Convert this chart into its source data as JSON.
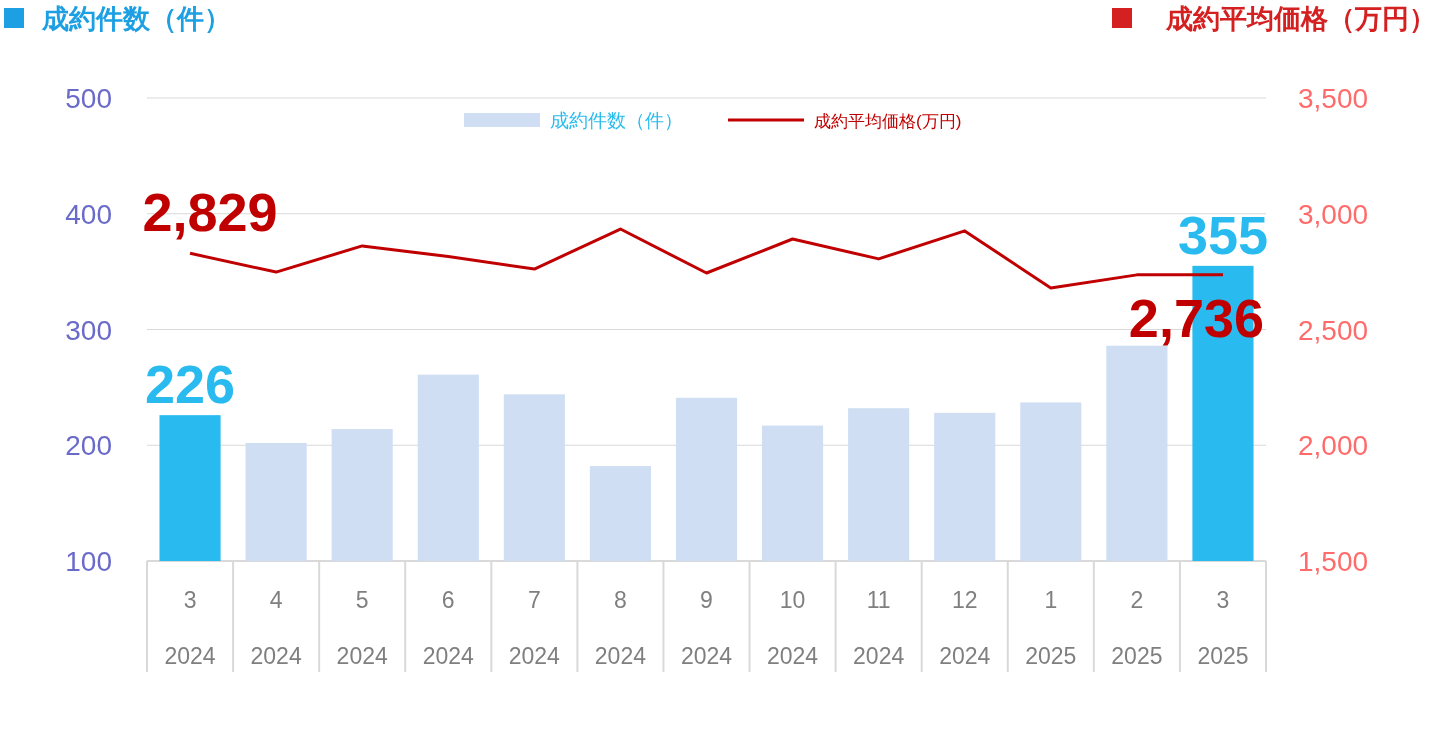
{
  "chart_data": {
    "type": "bar",
    "ylabel": "成約件数（件）",
    "y2label": "成約平均価格（万円）",
    "categories": [
      "3\n2024",
      "4\n2024",
      "5\n2024",
      "6\n2024",
      "7\n2024",
      "8\n2024",
      "9\n2024",
      "10\n2024",
      "11\n2024",
      "12\n2024",
      "1\n2025",
      "2\n2025",
      "3\n2025"
    ],
    "series": [
      {
        "name": "成約件数（件）",
        "color": "#cfdef3",
        "colors": [
          "#29bbef",
          "#cfdef3",
          "#cfdef3",
          "#cfdef3",
          "#cfdef3",
          "#cfdef3",
          "#cfdef3",
          "#cfdef3",
          "#cfdef3",
          "#cfdef3",
          "#cfdef3",
          "#cfdef3",
          "#29bbef"
        ],
        "values": [
          226,
          202,
          214,
          261,
          244,
          182,
          241,
          217,
          232,
          228,
          237,
          286,
          355
        ],
        "value_labels": [
          "226",
          null,
          null,
          null,
          null,
          null,
          null,
          null,
          null,
          null,
          null,
          null,
          "355"
        ]
      },
      {
        "name": "成約平均価格(万円)",
        "type": "line",
        "axis": "y2",
        "color": "#c00000",
        "values": [
          2829,
          2748,
          2861,
          2815,
          2761,
          2934,
          2744,
          2891,
          2805,
          2926,
          2679,
          2736,
          2736
        ],
        "value_labels": [
          "2,829",
          null,
          null,
          null,
          null,
          null,
          null,
          null,
          null,
          null,
          null,
          null,
          "2,736"
        ]
      }
    ],
    "ylim": [
      100,
      500
    ],
    "yticks": [
      100,
      200,
      300,
      400,
      500
    ],
    "y2lim": [
      1500,
      3500
    ],
    "y2ticks": [
      {
        "value": 1500,
        "label": "1,500"
      },
      {
        "value": 2000,
        "label": "2,000"
      },
      {
        "value": 2500,
        "label": "2,500"
      },
      {
        "value": 3000,
        "label": "3,000"
      },
      {
        "value": 3500,
        "label": "3,500"
      }
    ],
    "grid": "y",
    "legend": "top",
    "marker": "none",
    "line_style": "solid"
  }
}
